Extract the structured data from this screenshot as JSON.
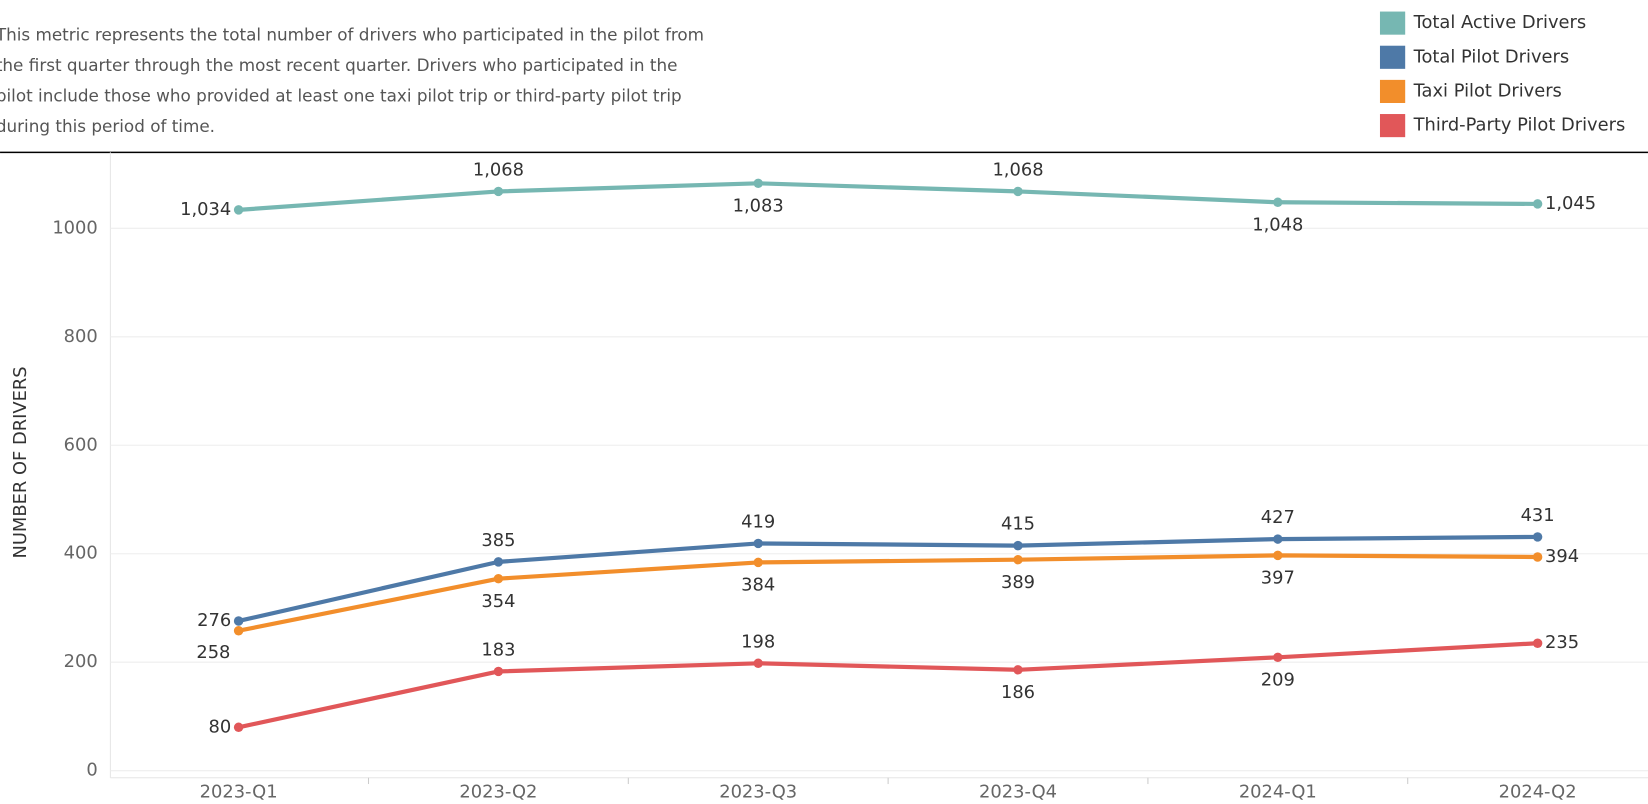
{
  "chart_data": {
    "type": "line",
    "description": [
      "This metric represents the total number of drivers who participated in the pilot from",
      "the first quarter through the most recent quarter. Drivers who participated in the",
      "pilot include those who provided at least one taxi pilot trip or third-party pilot trip",
      "during this period of time."
    ],
    "y_label": "NUMBER OF DRIVERS",
    "categories": [
      "2023-Q1",
      "2023-Q2",
      "2023-Q3",
      "2023-Q4",
      "2024-Q1",
      "2024-Q2"
    ],
    "series": [
      {
        "name": "Total Active Drivers",
        "color": "#76b7b2",
        "values": [
          1034,
          1068,
          1083,
          1068,
          1048,
          1045
        ],
        "value_labels": [
          "1,034",
          "1,068",
          "1,083",
          "1,068",
          "1,048",
          "1,045"
        ]
      },
      {
        "name": "Total Pilot Drivers",
        "color": "#4e79a7",
        "values": [
          276,
          385,
          419,
          415,
          427,
          431
        ]
      },
      {
        "name": "Taxi Pilot Drivers",
        "color": "#f28e2b",
        "values": [
          258,
          354,
          384,
          389,
          397,
          394
        ]
      },
      {
        "name": "Third-Party Pilot Drivers",
        "color": "#e15759",
        "values": [
          80,
          183,
          198,
          186,
          209,
          235
        ]
      }
    ],
    "ylim": [
      -13,
      1140
    ],
    "yticks": [
      0,
      200,
      400,
      600,
      800,
      1000
    ],
    "grid": true,
    "legend": "top-right"
  }
}
